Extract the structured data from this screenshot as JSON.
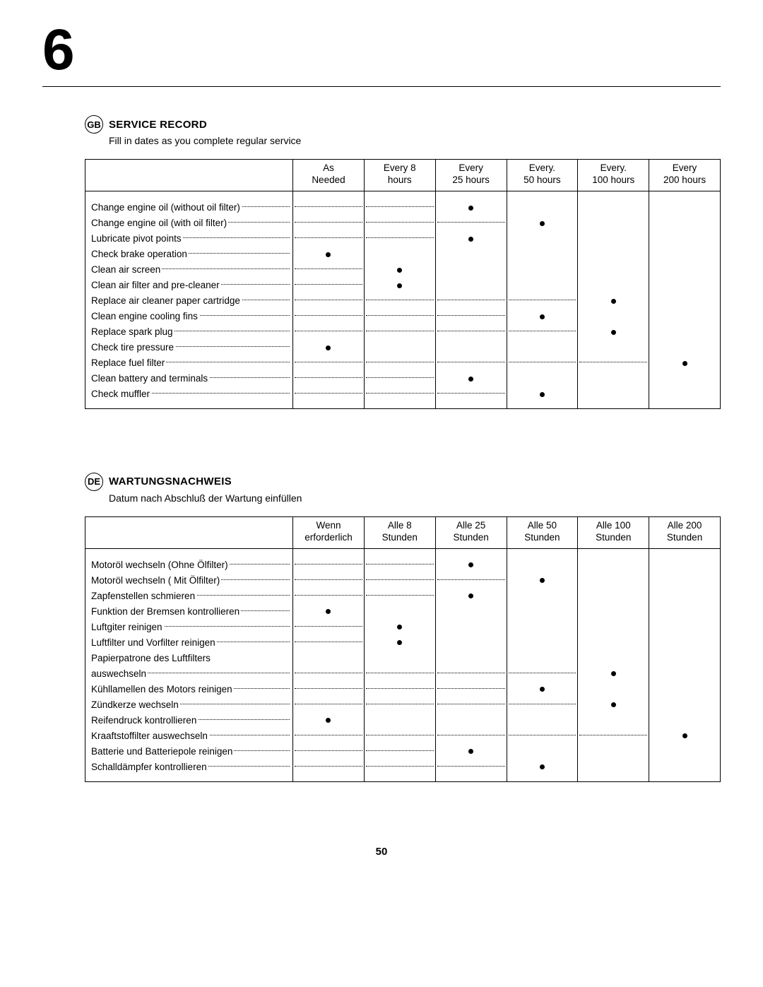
{
  "chapter": "6",
  "page_number": "50",
  "sections": [
    {
      "lang_code": "GB",
      "title": "SERVICE RECORD",
      "subtitle": "Fill in dates as you complete regular service",
      "columns": [
        {
          "l1": "As",
          "l2": "Needed"
        },
        {
          "l1": "Every 8",
          "l2": "hours"
        },
        {
          "l1": "Every",
          "l2": "25 hours"
        },
        {
          "l1": "Every.",
          "l2": "50 hours"
        },
        {
          "l1": "Every.",
          "l2": "100 hours"
        },
        {
          "l1": "Every",
          "l2": "200 hours"
        }
      ],
      "rows": [
        {
          "label": "Change engine oil (without oil filter)",
          "mark": 2
        },
        {
          "label": "Change engine oil (with oil filter)",
          "mark": 3
        },
        {
          "label": "Lubricate pivot points",
          "mark": 2
        },
        {
          "label": "Check brake operation",
          "mark": 0
        },
        {
          "label": "Clean air screen",
          "mark": 1
        },
        {
          "label": "Clean air filter and pre-cleaner",
          "mark": 1
        },
        {
          "label": "Replace air cleaner paper cartridge",
          "mark": 4
        },
        {
          "label": "Clean engine cooling fins",
          "mark": 3
        },
        {
          "label": "Replace spark plug",
          "mark": 4
        },
        {
          "label": "Check tire pressure",
          "mark": 0
        },
        {
          "label": "Replace fuel filter",
          "mark": 5
        },
        {
          "label": "Clean battery and terminals",
          "mark": 2
        },
        {
          "label": "Check muffler",
          "mark": 3
        }
      ]
    },
    {
      "lang_code": "DE",
      "title": "WARTUNGSNACHWEIS",
      "subtitle": "Datum nach Abschluß der Wartung einfüllen",
      "columns": [
        {
          "l1": "Wenn",
          "l2": "erforderlich"
        },
        {
          "l1": "Alle 8",
          "l2": "Stunden"
        },
        {
          "l1": "Alle 25",
          "l2": "Stunden"
        },
        {
          "l1": "Alle 50",
          "l2": "Stunden"
        },
        {
          "l1": "Alle 100",
          "l2": "Stunden"
        },
        {
          "l1": "Alle 200",
          "l2": "Stunden"
        }
      ],
      "rows": [
        {
          "label": "Motoröl wechseln (Ohne Ölfilter)",
          "mark": 2
        },
        {
          "label": "Motoröl wechseln ( Mit Ölfilter)",
          "mark": 3
        },
        {
          "label": "Zapfenstellen schmieren",
          "mark": 2
        },
        {
          "label": "Funktion der Bremsen kontrollieren",
          "mark": 0
        },
        {
          "label": "Luftgiter reinigen",
          "mark": 1
        },
        {
          "label": "Luftfilter und Vorfilter reinigen",
          "mark": 1
        },
        {
          "label": "Papierpatrone des Luftfilters",
          "label2": "auswechseln",
          "mark": 4
        },
        {
          "label": "Kühllamellen des Motors reinigen",
          "mark": 3
        },
        {
          "label": "Zündkerze wechseln",
          "mark": 4
        },
        {
          "label": "Reifendruck kontrollieren",
          "mark": 0
        },
        {
          "label": "Kraaftstoffilter auswechseln",
          "mark": 5
        },
        {
          "label": "Batterie und Batteriepole reinigen",
          "mark": 2
        },
        {
          "label": "Schalldämpfer kontrollieren",
          "mark": 3
        }
      ]
    }
  ]
}
